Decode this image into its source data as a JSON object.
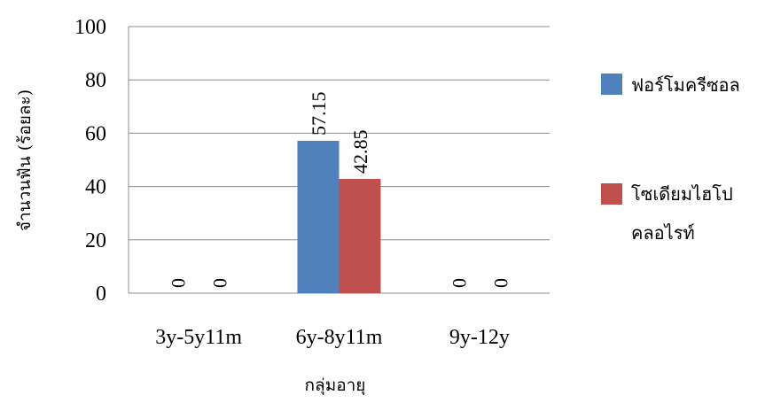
{
  "chart_data": {
    "type": "bar",
    "categories": [
      "3y-5y11m",
      "6y-8y11m",
      "9y-12y"
    ],
    "series": [
      {
        "name": "ฟอร์โมครีซอล",
        "values": [
          0,
          57.15,
          0
        ],
        "color": "#4f81bd"
      },
      {
        "name": "โซเดียมไฮโปคลอไรท์",
        "legend_lines": [
          "โซเดียมไฮโป",
          "คลอไรท์"
        ],
        "values": [
          0,
          42.85,
          0
        ],
        "color": "#c0504d"
      }
    ],
    "data_labels": [
      [
        "0",
        "57.15",
        "0"
      ],
      [
        "0",
        "42.85",
        "0"
      ]
    ],
    "xlabel": "กลุ่มอายุ",
    "ylabel": "จำนวนฟัน (ร้อยละ)",
    "ylim": [
      0,
      100
    ],
    "yticks": [
      0,
      20,
      40,
      60,
      80,
      100
    ],
    "grid": true,
    "legend": "right"
  }
}
